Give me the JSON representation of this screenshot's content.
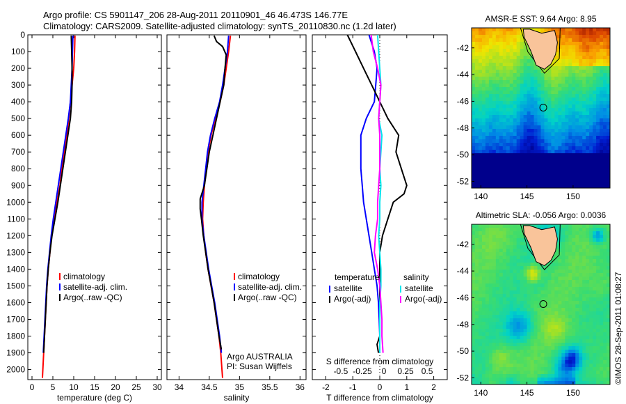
{
  "header": {
    "line1": "Argo profile: CS 5901147_206 28-Aug-2011 20110901_46 46.473S 146.77E",
    "line2": "Climatology: CARS2009. Satellite-adjusted climatology: synTS_20110830.nc (1.2d later)"
  },
  "colors": {
    "climatology": "#ff0000",
    "satellite": "#0000ff",
    "argo": "#000000",
    "sat_salinity": "#00e5ee",
    "argo_salinity_adj": "#ff00ff",
    "land": "#f9c49a"
  },
  "chart_data": [
    {
      "type": "line",
      "name": "temperature-profile",
      "xlabel": "temperature (deg C)",
      "xlim": [
        -1,
        31
      ],
      "ylim": [
        2060,
        0
      ],
      "xticks": [
        "0",
        "5",
        "10",
        "15",
        "20",
        "25",
        "30"
      ],
      "yticks": [
        "0",
        "100",
        "200",
        "300",
        "400",
        "500",
        "600",
        "700",
        "800",
        "900",
        "1000",
        "1100",
        "1200",
        "1300",
        "1400",
        "1500",
        "1600",
        "1700",
        "1800",
        "1900",
        "2000"
      ],
      "legend": [
        "climatology",
        "satellite-adj. clim.",
        "Argo(..raw -QC)"
      ],
      "legend_position": "lower-center",
      "series": [
        {
          "name": "climatology",
          "color": "#ff0000",
          "points": [
            [
              10.3,
              5
            ],
            [
              10.2,
              100
            ],
            [
              10,
              200
            ],
            [
              9.6,
              300
            ],
            [
              9.2,
              400
            ],
            [
              8.8,
              500
            ],
            [
              8.4,
              600
            ],
            [
              7.8,
              700
            ],
            [
              7.2,
              800
            ],
            [
              6.7,
              900
            ],
            [
              6,
              1000
            ],
            [
              5.3,
              1100
            ],
            [
              4.7,
              1200
            ],
            [
              4.3,
              1300
            ],
            [
              3.9,
              1400
            ],
            [
              3.6,
              1500
            ],
            [
              3.4,
              1600
            ],
            [
              3.2,
              1700
            ],
            [
              3,
              1800
            ],
            [
              2.8,
              1900
            ],
            [
              2.6,
              2000
            ],
            [
              2.5,
              2050
            ]
          ]
        },
        {
          "name": "satellite-adj. clim.",
          "color": "#0000ff",
          "points": [
            [
              9.8,
              5
            ],
            [
              9.7,
              100
            ],
            [
              9.6,
              200
            ],
            [
              9.4,
              300
            ],
            [
              9.2,
              400
            ],
            [
              8.7,
              500
            ],
            [
              8.1,
              600
            ],
            [
              7.5,
              700
            ],
            [
              6.9,
              800
            ],
            [
              6.3,
              900
            ],
            [
              5.7,
              1000
            ],
            [
              5.1,
              1100
            ],
            [
              4.6,
              1200
            ],
            [
              4.2,
              1300
            ],
            [
              3.8,
              1400
            ],
            [
              3.5,
              1500
            ],
            [
              3.3,
              1600
            ],
            [
              3.1,
              1700
            ],
            [
              2.9,
              1800
            ],
            [
              2.7,
              1900
            ]
          ]
        },
        {
          "name": "Argo(..raw -QC)",
          "color": "#000000",
          "points": [
            [
              9.4,
              5
            ],
            [
              9.5,
              100
            ],
            [
              9.6,
              200
            ],
            [
              9.6,
              300
            ],
            [
              9.5,
              400
            ],
            [
              9.2,
              500
            ],
            [
              8.6,
              600
            ],
            [
              8,
              700
            ],
            [
              7.4,
              800
            ],
            [
              6.8,
              900
            ],
            [
              6.2,
              1000
            ],
            [
              5.5,
              1100
            ],
            [
              4.8,
              1200
            ],
            [
              4.3,
              1300
            ],
            [
              3.9,
              1400
            ],
            [
              3.6,
              1500
            ],
            [
              3.4,
              1600
            ],
            [
              3.2,
              1700
            ],
            [
              3,
              1800
            ],
            [
              2.8,
              1900
            ]
          ]
        }
      ]
    },
    {
      "type": "line",
      "name": "salinity-profile",
      "xlabel": "salinity",
      "xlim": [
        33.8,
        36.1
      ],
      "ylim": [
        2060,
        0
      ],
      "xticks": [
        "34",
        "34.5",
        "35",
        "35.5",
        "36"
      ],
      "legend": [
        "climatology",
        "satellite-adj. clim.",
        "Argo(..raw -QC)"
      ],
      "legend_position": "lower-center",
      "annotation": [
        "Argo AUSTRALIA",
        "PI: Susan Wijffels"
      ],
      "series": [
        {
          "name": "climatology",
          "color": "#ff0000",
          "points": [
            [
              34.85,
              5
            ],
            [
              34.82,
              100
            ],
            [
              34.78,
              200
            ],
            [
              34.74,
              300
            ],
            [
              34.68,
              400
            ],
            [
              34.6,
              500
            ],
            [
              34.53,
              600
            ],
            [
              34.48,
              700
            ],
            [
              34.45,
              800
            ],
            [
              34.42,
              900
            ],
            [
              34.4,
              1000
            ],
            [
              34.39,
              1100
            ],
            [
              34.41,
              1200
            ],
            [
              34.44,
              1300
            ],
            [
              34.48,
              1400
            ],
            [
              34.53,
              1500
            ],
            [
              34.58,
              1600
            ],
            [
              34.62,
              1700
            ],
            [
              34.66,
              1800
            ],
            [
              34.69,
              1900
            ],
            [
              34.71,
              2000
            ],
            [
              34.72,
              2050
            ]
          ]
        },
        {
          "name": "satellite-adj. clim.",
          "color": "#0000ff",
          "points": [
            [
              34.82,
              5
            ],
            [
              34.8,
              100
            ],
            [
              34.76,
              200
            ],
            [
              34.72,
              300
            ],
            [
              34.67,
              400
            ],
            [
              34.59,
              500
            ],
            [
              34.52,
              600
            ],
            [
              34.47,
              700
            ],
            [
              34.44,
              800
            ],
            [
              34.41,
              900
            ],
            [
              34.38,
              1000
            ],
            [
              34.38,
              1100
            ],
            [
              34.41,
              1200
            ],
            [
              34.45,
              1300
            ],
            [
              34.49,
              1400
            ],
            [
              34.54,
              1500
            ],
            [
              34.59,
              1600
            ],
            [
              34.63,
              1700
            ],
            [
              34.67,
              1800
            ],
            [
              34.7,
              1900
            ]
          ]
        },
        {
          "name": "Argo(..raw -QC)",
          "color": "#000000",
          "points": [
            [
              34.58,
              5
            ],
            [
              34.62,
              40
            ],
            [
              34.72,
              70
            ],
            [
              34.78,
              120
            ],
            [
              34.76,
              200
            ],
            [
              34.74,
              300
            ],
            [
              34.68,
              400
            ],
            [
              34.62,
              500
            ],
            [
              34.56,
              600
            ],
            [
              34.5,
              700
            ],
            [
              34.46,
              800
            ],
            [
              34.42,
              900
            ],
            [
              34.35,
              980
            ],
            [
              34.35,
              1040
            ],
            [
              34.37,
              1100
            ],
            [
              34.4,
              1200
            ],
            [
              34.44,
              1300
            ],
            [
              34.48,
              1400
            ],
            [
              34.53,
              1500
            ],
            [
              34.58,
              1600
            ],
            [
              34.62,
              1700
            ],
            [
              34.66,
              1800
            ],
            [
              34.7,
              1880
            ]
          ]
        }
      ]
    },
    {
      "type": "line",
      "name": "difference-profile",
      "xlabel": "T difference from climatology",
      "xlabel_top": "S difference from climatology",
      "xlim": [
        -2.5,
        2.5
      ],
      "ylim": [
        2060,
        0
      ],
      "xticks": [
        "-2",
        "-1",
        "0",
        "1",
        "2"
      ],
      "xticks_salinity": [
        "-0.5",
        "-0.25",
        "0",
        "0.25",
        "0.5"
      ],
      "legend_temperature": {
        "heading": "temperature",
        "items": [
          "satellite",
          "Argo(-adj)"
        ]
      },
      "legend_salinity": {
        "heading": "salinity",
        "items": [
          "satellite",
          "Argo(-adj)"
        ]
      },
      "legend_position": "lower-center",
      "series": [
        {
          "name": "satellite",
          "color": "#0000ff",
          "points": [
            [
              -0.4,
              0
            ],
            [
              -0.2,
              100
            ],
            [
              -0.1,
              200
            ],
            [
              -0.15,
              300
            ],
            [
              -0.2,
              400
            ],
            [
              -0.5,
              500
            ],
            [
              -0.7,
              600
            ],
            [
              -0.7,
              700
            ],
            [
              -0.7,
              800
            ],
            [
              -0.65,
              900
            ],
            [
              -0.6,
              1000
            ],
            [
              -0.5,
              1100
            ],
            [
              -0.4,
              1200
            ],
            [
              -0.3,
              1300
            ],
            [
              -0.2,
              1400
            ],
            [
              -0.1,
              1500
            ],
            [
              -0.05,
              1600
            ],
            [
              -0.02,
              1700
            ],
            [
              0,
              1800
            ],
            [
              0,
              1900
            ]
          ]
        },
        {
          "name": "Argo(-adj)",
          "color": "#000000",
          "points": [
            [
              -1.2,
              0
            ],
            [
              -0.9,
              100
            ],
            [
              -0.6,
              200
            ],
            [
              -0.3,
              300
            ],
            [
              0,
              400
            ],
            [
              0.3,
              500
            ],
            [
              0.7,
              600
            ],
            [
              0.6,
              700
            ],
            [
              0.8,
              800
            ],
            [
              1.0,
              900
            ],
            [
              0.9,
              950
            ],
            [
              0.5,
              1000
            ],
            [
              0.3,
              1100
            ],
            [
              0.1,
              1200
            ],
            [
              0,
              1300
            ],
            [
              0,
              1500
            ],
            [
              0,
              1700
            ],
            [
              0,
              1800
            ],
            [
              -0.1,
              1850
            ],
            [
              -0.05,
              1900
            ]
          ]
        },
        {
          "name": "satellite (salinity)",
          "color": "#00e5ee",
          "points": [
            [
              -0.02,
              0
            ],
            [
              -0.01,
              100
            ],
            [
              0,
              200
            ],
            [
              0.01,
              300
            ],
            [
              0,
              400
            ],
            [
              -0.01,
              500
            ],
            [
              0.02,
              600
            ],
            [
              0.01,
              700
            ],
            [
              0,
              800
            ],
            [
              0.01,
              900
            ],
            [
              0,
              1000
            ],
            [
              0,
              1100
            ],
            [
              -0.01,
              1200
            ],
            [
              0,
              1300
            ],
            [
              0.01,
              1400
            ],
            [
              0.01,
              1500
            ],
            [
              0,
              1600
            ],
            [
              0,
              1700
            ],
            [
              0,
              1800
            ],
            [
              0,
              1900
            ]
          ]
        },
        {
          "name": "Argo(-adj) (salinity)",
          "color": "#ff00ff",
          "points": [
            [
              -0.08,
              0
            ],
            [
              -0.06,
              100
            ],
            [
              -0.02,
              200
            ],
            [
              0.01,
              300
            ],
            [
              0,
              400
            ],
            [
              -0.01,
              500
            ],
            [
              0,
              600
            ],
            [
              0,
              700
            ],
            [
              0,
              800
            ],
            [
              -0.01,
              900
            ],
            [
              -0.02,
              1000
            ],
            [
              -0.02,
              1100
            ],
            [
              -0.04,
              1200
            ],
            [
              -0.05,
              1300
            ],
            [
              -0.02,
              1400
            ],
            [
              0,
              1500
            ],
            [
              0.01,
              1600
            ],
            [
              0.02,
              1700
            ],
            [
              0.02,
              1800
            ],
            [
              0.03,
              1900
            ]
          ]
        }
      ]
    },
    {
      "type": "heatmap",
      "name": "sst-map",
      "title": "AMSR-E SST: 9.64 Argo: 8.95",
      "xlim": [
        139,
        154
      ],
      "ylim": [
        -52.5,
        -40.5
      ],
      "xticks": [
        "140",
        "145",
        "150"
      ],
      "yticks": [
        "-42",
        "-44",
        "-46",
        "-48",
        "-50",
        "-52"
      ],
      "profile_location": [
        146.77,
        -46.473
      ]
    },
    {
      "type": "heatmap",
      "name": "sla-map",
      "title": "Altimetric SLA: -0.056 Argo: 0.0036",
      "xlim": [
        139,
        154
      ],
      "ylim": [
        -52.5,
        -40.5
      ],
      "xticks": [
        "140",
        "145",
        "150"
      ],
      "yticks": [
        "-42",
        "-44",
        "-46",
        "-48",
        "-50",
        "-52"
      ],
      "profile_location": [
        146.77,
        -46.473
      ]
    }
  ],
  "footer": {
    "credit": "©IMOS 28-Sep-2011 01:08:27"
  }
}
